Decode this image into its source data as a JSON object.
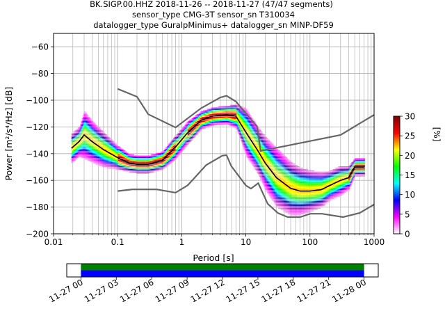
{
  "title_lines": [
    "BK.SIGP.00.HHZ   2018-11-26 -- 2018-11-27  (47/47 segments)",
    "sensor_type CMG-3T sensor_sn T310034",
    "datalogger_type GuralpMinimus+ datalogger_sn MINP-DF59"
  ],
  "chart_data": [
    {
      "type": "heatmap",
      "xlabel": "Period [s]",
      "ylabel": "Power [m²/s⁴/Hz] [dB]",
      "xscale": "log",
      "xlim": [
        0.01,
        1000
      ],
      "ylim": [
        -200,
        -50
      ],
      "x_ticks": [
        {
          "value": 0.01,
          "label": "0.01"
        },
        {
          "value": 0.1,
          "label": "0.1"
        },
        {
          "value": 1,
          "label": "1"
        },
        {
          "value": 10,
          "label": "10"
        },
        {
          "value": 100,
          "label": "100"
        },
        {
          "value": 1000,
          "label": "1000"
        }
      ],
      "y_ticks": [
        {
          "value": -60,
          "label": "−60"
        },
        {
          "value": -80,
          "label": "−80"
        },
        {
          "value": -100,
          "label": "−100"
        },
        {
          "value": -120,
          "label": "−120"
        },
        {
          "value": -140,
          "label": "−140"
        },
        {
          "value": -160,
          "label": "−160"
        },
        {
          "value": -180,
          "label": "−180"
        },
        {
          "value": -200,
          "label": "−200"
        }
      ],
      "grid": true,
      "colorbar": {
        "label": "[%]",
        "min": 0,
        "max": 30,
        "ticks": [
          {
            "value": 0,
            "label": "0"
          },
          {
            "value": 5,
            "label": "5"
          },
          {
            "value": 10,
            "label": "10"
          },
          {
            "value": 15,
            "label": "15"
          },
          {
            "value": 20,
            "label": "20"
          },
          {
            "value": 25,
            "label": "25"
          },
          {
            "value": 30,
            "label": "30"
          }
        ],
        "colors": [
          "#ffffff",
          "#ff00ff",
          "#0000ff",
          "#00ffff",
          "#00ff00",
          "#ffff00",
          "#ff0000",
          "#800000"
        ]
      },
      "density_ridge": {
        "period": [
          0.019,
          0.025,
          0.03,
          0.04,
          0.06,
          0.1,
          0.15,
          0.2,
          0.3,
          0.5,
          0.8,
          1.2,
          2,
          3,
          5,
          7,
          10,
          15,
          20,
          30,
          50,
          70,
          100,
          150,
          200,
          300,
          400,
          500,
          700
        ],
        "power": [
          -136,
          -131,
          -126,
          -131,
          -137,
          -143,
          -147,
          -148,
          -148,
          -145,
          -135,
          -125,
          -115,
          -112,
          -111,
          -112,
          -124,
          -137,
          -147,
          -158,
          -166,
          -168,
          -168,
          -167,
          -164,
          -160,
          -158,
          -150,
          -150
        ],
        "spread_db": [
          5,
          5,
          8,
          7,
          6,
          4,
          3,
          3,
          3,
          3,
          4,
          4,
          3,
          3,
          3,
          4,
          8,
          8,
          9,
          10,
          9,
          8,
          7,
          6,
          5,
          5,
          4,
          3,
          3
        ]
      },
      "series": [
        {
          "period": [
            0.1,
            0.2,
            0.3,
            0.8,
            2,
            4,
            5,
            7,
            15,
            17,
            300,
            1000
          ],
          "power": [
            -91.5,
            -97.4,
            -110.5,
            -120.4,
            -106,
            -97.9,
            -96.7,
            -101,
            -119.8,
            -138,
            -126,
            -111
          ]
        },
        {
          "period": [
            0.1,
            0.17,
            0.4,
            0.8,
            1.24,
            2.4,
            4.3,
            5,
            5.9,
            10,
            12,
            15.6,
            21.9,
            31.6,
            45,
            70,
            101,
            154,
            328,
            600,
            1000
          ],
          "power": [
            -168,
            -166.7,
            -166.7,
            -169.2,
            -163.7,
            -148.6,
            -141.5,
            -141.1,
            -149.2,
            -163.8,
            -166.2,
            -162.1,
            -177.5,
            -184.5,
            -187.5,
            -187.5,
            -185,
            -185,
            -187.5,
            -184.4,
            -178
          ]
        },
        {
          "period": [
            0.019,
            0.025,
            0.03,
            0.04,
            0.06,
            0.1,
            0.15,
            0.2,
            0.3,
            0.5,
            0.8,
            1.2,
            2,
            3,
            5,
            7,
            10,
            15,
            20,
            30,
            50,
            70,
            100,
            150,
            200,
            300,
            400,
            500,
            700
          ],
          "power": [
            -136,
            -131,
            -126,
            -131,
            -137,
            -143,
            -147,
            -148,
            -148,
            -145,
            -135,
            -125,
            -115,
            -112,
            -111,
            -112,
            -124,
            -137,
            -147,
            -158,
            -166,
            -168,
            -168,
            -167,
            -164,
            -160,
            -158,
            -150,
            -150
          ]
        }
      ]
    },
    {
      "type": "timeline",
      "x_ticks": [
        {
          "label": "11-27 00"
        },
        {
          "label": "11-27 03"
        },
        {
          "label": "11-27 06"
        },
        {
          "label": "11-27 09"
        },
        {
          "label": "11-27 12"
        },
        {
          "label": "11-27 15"
        },
        {
          "label": "11-27 18"
        },
        {
          "label": "11-27 21"
        },
        {
          "label": "11-28 00"
        }
      ],
      "coverage_hours": [
        0,
        24
      ],
      "xlim_hours": [
        -1.2,
        25.2
      ],
      "bar_colors": [
        "#008000",
        "#0000ff"
      ]
    }
  ]
}
